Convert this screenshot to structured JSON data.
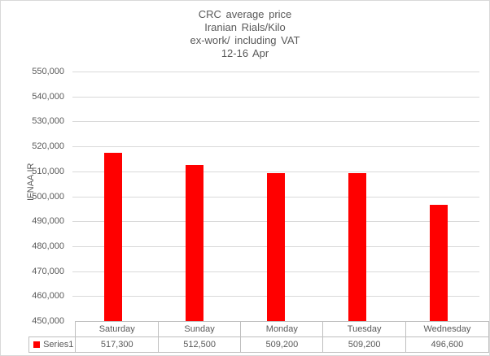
{
  "title_lines": [
    "CRC average price",
    "Iranian Rials/Kilo",
    "ex-work/ including VAT",
    "12-16 Apr"
  ],
  "y_axis_title": "IFNAA.IR",
  "legend_label": "Series1",
  "colors": {
    "bar": "#ff0000",
    "gridline": "#d9d9d9",
    "table_border": "#bfbfbf",
    "text": "#595959",
    "background": "#ffffff"
  },
  "chart_data": {
    "type": "bar",
    "title": "CRC average price Iranian Rials/Kilo ex-work/ including VAT 12-16 Apr",
    "ylabel": "IFNAA.IR",
    "xlabel": "",
    "categories": [
      "Saturday",
      "Sunday",
      "Monday",
      "Tuesday",
      "Wednesday"
    ],
    "series": [
      {
        "name": "Series1",
        "values": [
          517300,
          512500,
          509200,
          509200,
          496600
        ],
        "value_labels": [
          "517,300",
          "512,500",
          "509,200",
          "509,200",
          "496,600"
        ],
        "color": "#ff0000"
      }
    ],
    "ylim": [
      450000,
      550000
    ],
    "ytick_step": 10000,
    "ytick_labels": [
      "450,000",
      "460,000",
      "470,000",
      "480,000",
      "490,000",
      "500,000",
      "510,000",
      "520,000",
      "530,000",
      "540,000",
      "550,000"
    ],
    "grid": true,
    "legend_position": "data-table-left",
    "data_table": true
  }
}
